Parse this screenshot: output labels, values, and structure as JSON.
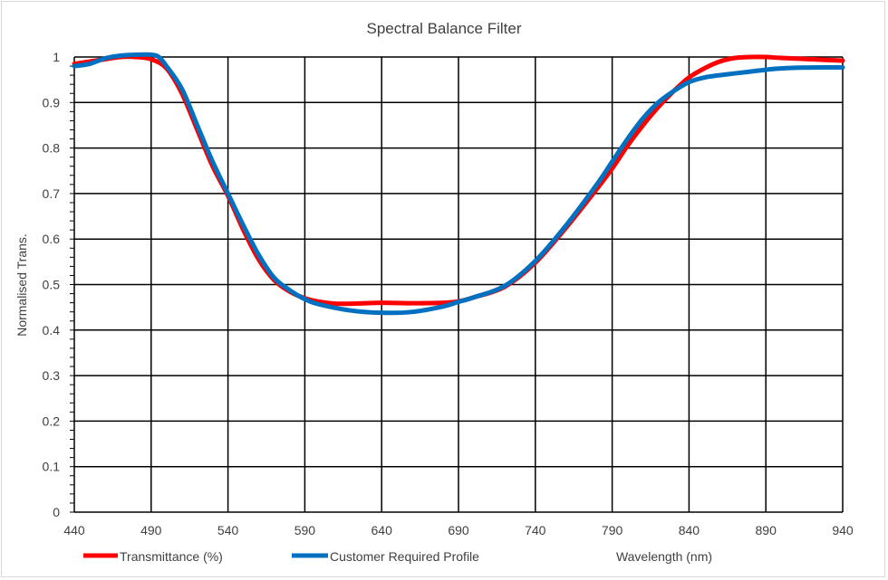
{
  "chart_data": {
    "type": "line",
    "title": "Spectral Balance Filter",
    "xlabel": "Wavelength (nm)",
    "ylabel": "Normalised Trans.",
    "xlim": [
      440,
      940
    ],
    "ylim": [
      0,
      1
    ],
    "xticks": [
      440,
      490,
      540,
      590,
      640,
      690,
      740,
      790,
      840,
      890,
      940
    ],
    "yticks": [
      "0",
      "0.1",
      "0.2",
      "0.3",
      "0.4",
      "0.5",
      "0.6",
      "0.7",
      "0.8",
      "0.9",
      "1"
    ],
    "grid": true,
    "legend_position": "bottom-left",
    "series": [
      {
        "name": "Transmittance (%)",
        "color": "#ff0000",
        "x": [
          440,
          450,
          460,
          470,
          480,
          490,
          500,
          510,
          520,
          530,
          540,
          550,
          560,
          570,
          580,
          590,
          600,
          610,
          620,
          640,
          660,
          680,
          690,
          700,
          720,
          740,
          760,
          780,
          790,
          800,
          810,
          820,
          830,
          840,
          850,
          860,
          870,
          880,
          890,
          900,
          920,
          940
        ],
        "y": [
          0.985,
          0.99,
          0.995,
          1.0,
          1.0,
          0.995,
          0.975,
          0.92,
          0.84,
          0.76,
          0.695,
          0.62,
          0.555,
          0.51,
          0.485,
          0.47,
          0.462,
          0.458,
          0.458,
          0.46,
          0.459,
          0.46,
          0.463,
          0.472,
          0.495,
          0.548,
          0.625,
          0.71,
          0.755,
          0.805,
          0.85,
          0.89,
          0.925,
          0.955,
          0.975,
          0.99,
          0.998,
          1.0,
          1.0,
          0.998,
          0.995,
          0.992
        ]
      },
      {
        "name": "Customer Required Profile",
        "color": "#0070c0",
        "x": [
          440,
          450,
          460,
          470,
          480,
          490,
          495,
          500,
          510,
          520,
          530,
          540,
          550,
          560,
          570,
          580,
          590,
          600,
          620,
          640,
          660,
          680,
          690,
          700,
          720,
          740,
          760,
          780,
          790,
          800,
          810,
          820,
          830,
          840,
          850,
          860,
          880,
          890,
          900,
          920,
          940
        ],
        "y": [
          0.98,
          0.985,
          0.997,
          1.003,
          1.005,
          1.005,
          1.0,
          0.98,
          0.93,
          0.85,
          0.77,
          0.7,
          0.63,
          0.565,
          0.515,
          0.488,
          0.468,
          0.456,
          0.443,
          0.438,
          0.44,
          0.452,
          0.462,
          0.472,
          0.497,
          0.552,
          0.63,
          0.72,
          0.77,
          0.82,
          0.865,
          0.9,
          0.925,
          0.945,
          0.955,
          0.96,
          0.968,
          0.972,
          0.975,
          0.977,
          0.977
        ]
      }
    ]
  }
}
